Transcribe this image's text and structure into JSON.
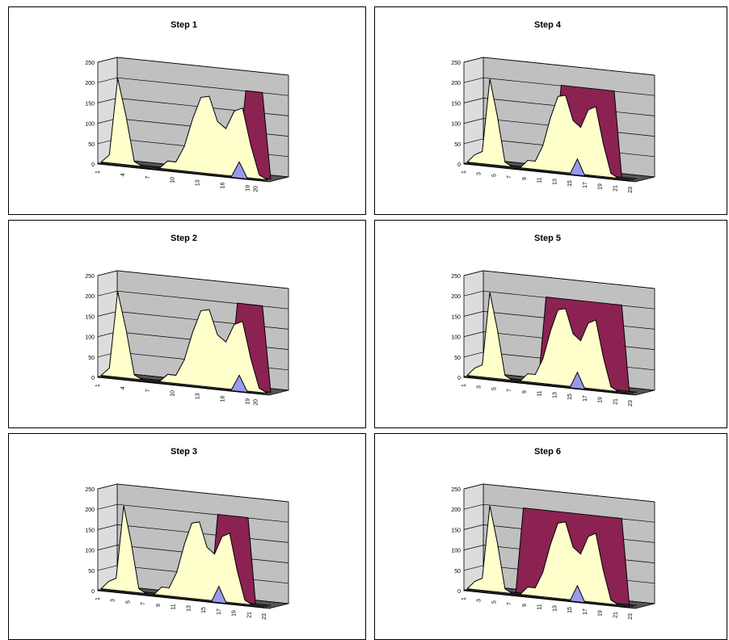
{
  "colors": {
    "series_main": "#8b2252",
    "series_window": "#ffffcc",
    "series_marker": "#9999ee",
    "wall": "#c0c0c0",
    "floor": "#000000"
  },
  "chart_data": [
    {
      "type": "area",
      "title": "Step 1",
      "x": [
        "1",
        "2",
        "3",
        "4",
        "5",
        "6",
        "7",
        "8",
        "9",
        "10",
        "11",
        "12",
        "13",
        "14",
        "15",
        "16",
        "17",
        "18",
        "19",
        "20",
        "21"
      ],
      "x_tick_labels": [
        "1",
        "4",
        "7",
        "10",
        "13",
        "16",
        "19",
        "20"
      ],
      "y_ticks": [
        "0",
        "50",
        "100",
        "150",
        "200",
        "250"
      ],
      "ylim": [
        0,
        250
      ],
      "series": [
        {
          "values": [
            0,
            20,
            210,
            120,
            10,
            0,
            0,
            0,
            20,
            20,
            60,
            130,
            185,
            190,
            130,
            115,
            160,
            170,
            80,
            10,
            0
          ]
        },
        {
          "values": [
            0,
            0,
            0,
            0,
            0,
            0,
            0,
            0,
            0,
            0,
            0,
            0,
            0,
            0,
            0,
            0,
            0,
            210,
            210,
            210,
            0
          ]
        },
        {
          "values": [
            0,
            0,
            0,
            0,
            0,
            0,
            0,
            0,
            0,
            0,
            0,
            0,
            0,
            0,
            0,
            0,
            0,
            40,
            0,
            0,
            0
          ]
        }
      ]
    },
    {
      "type": "area",
      "title": "Step 4",
      "x": [
        "1",
        "2",
        "3",
        "4",
        "5",
        "6",
        "7",
        "8",
        "9",
        "10",
        "11",
        "12",
        "13",
        "14",
        "15",
        "16",
        "17",
        "18",
        "19",
        "20",
        "21",
        "22",
        "23"
      ],
      "x_tick_labels": [
        "1",
        "3",
        "5",
        "7",
        "9",
        "11",
        "13",
        "15",
        "17",
        "19",
        "21",
        "23"
      ],
      "y_ticks": [
        "0",
        "50",
        "100",
        "150",
        "200",
        "250"
      ],
      "ylim": [
        0,
        250
      ],
      "series": [
        {
          "values": [
            0,
            20,
            30,
            210,
            120,
            10,
            0,
            0,
            20,
            20,
            60,
            130,
            185,
            190,
            130,
            115,
            160,
            170,
            80,
            10,
            0,
            0,
            0
          ]
        },
        {
          "values": [
            0,
            0,
            0,
            0,
            0,
            0,
            0,
            0,
            0,
            0,
            0,
            0,
            210,
            210,
            210,
            210,
            210,
            210,
            210,
            210,
            0,
            0,
            0
          ]
        },
        {
          "values": [
            0,
            0,
            0,
            0,
            0,
            0,
            0,
            0,
            0,
            0,
            0,
            0,
            0,
            0,
            0,
            40,
            0,
            0,
            0,
            0,
            0,
            0,
            0
          ]
        }
      ]
    },
    {
      "type": "area",
      "title": "Step 2",
      "x": [
        "1",
        "2",
        "3",
        "4",
        "5",
        "6",
        "7",
        "8",
        "9",
        "10",
        "11",
        "12",
        "13",
        "14",
        "15",
        "16",
        "17",
        "18",
        "19",
        "20",
        "21"
      ],
      "x_tick_labels": [
        "1",
        "4",
        "7",
        "10",
        "13",
        "16",
        "19",
        "20"
      ],
      "y_ticks": [
        "0",
        "50",
        "100",
        "150",
        "200",
        "250"
      ],
      "ylim": [
        0,
        250
      ],
      "series": [
        {
          "values": [
            0,
            20,
            210,
            120,
            10,
            0,
            0,
            0,
            20,
            20,
            60,
            130,
            185,
            190,
            130,
            115,
            160,
            170,
            80,
            10,
            0
          ]
        },
        {
          "values": [
            0,
            0,
            0,
            0,
            0,
            0,
            0,
            0,
            0,
            0,
            0,
            0,
            0,
            0,
            0,
            0,
            210,
            210,
            210,
            210,
            0
          ]
        },
        {
          "values": [
            0,
            0,
            0,
            0,
            0,
            0,
            0,
            0,
            0,
            0,
            0,
            0,
            0,
            0,
            0,
            0,
            0,
            40,
            0,
            0,
            0
          ]
        }
      ]
    },
    {
      "type": "area",
      "title": "Step 5",
      "x": [
        "1",
        "2",
        "3",
        "4",
        "5",
        "6",
        "7",
        "8",
        "9",
        "10",
        "11",
        "12",
        "13",
        "14",
        "15",
        "16",
        "17",
        "18",
        "19",
        "20",
        "21",
        "22",
        "23"
      ],
      "x_tick_labels": [
        "1",
        "3",
        "5",
        "7",
        "9",
        "11",
        "13",
        "15",
        "17",
        "19",
        "21",
        "23"
      ],
      "y_ticks": [
        "0",
        "50",
        "100",
        "150",
        "200",
        "250"
      ],
      "ylim": [
        0,
        250
      ],
      "series": [
        {
          "values": [
            0,
            20,
            30,
            210,
            120,
            10,
            0,
            0,
            20,
            20,
            60,
            130,
            185,
            190,
            130,
            115,
            160,
            170,
            80,
            10,
            0,
            0,
            0
          ]
        },
        {
          "values": [
            0,
            0,
            0,
            0,
            0,
            0,
            0,
            0,
            0,
            0,
            210,
            210,
            210,
            210,
            210,
            210,
            210,
            210,
            210,
            210,
            210,
            0,
            0
          ]
        },
        {
          "values": [
            0,
            0,
            0,
            0,
            0,
            0,
            0,
            0,
            0,
            0,
            0,
            0,
            0,
            0,
            0,
            40,
            0,
            0,
            0,
            0,
            0,
            0,
            0
          ]
        }
      ]
    },
    {
      "type": "area",
      "title": "Step 3",
      "x": [
        "1",
        "2",
        "3",
        "4",
        "5",
        "6",
        "7",
        "8",
        "9",
        "10",
        "11",
        "12",
        "13",
        "14",
        "15",
        "16",
        "17",
        "18",
        "19",
        "20",
        "21",
        "22",
        "23"
      ],
      "x_tick_labels": [
        "1",
        "3",
        "5",
        "7",
        "9",
        "11",
        "13",
        "15",
        "17",
        "19",
        "21",
        "23"
      ],
      "y_ticks": [
        "0",
        "50",
        "100",
        "150",
        "200",
        "250"
      ],
      "ylim": [
        0,
        250
      ],
      "series": [
        {
          "values": [
            0,
            20,
            30,
            210,
            120,
            10,
            0,
            0,
            20,
            20,
            60,
            130,
            185,
            190,
            130,
            115,
            160,
            170,
            80,
            10,
            0,
            0,
            0
          ]
        },
        {
          "values": [
            0,
            0,
            0,
            0,
            0,
            0,
            0,
            0,
            0,
            0,
            0,
            0,
            0,
            0,
            0,
            210,
            210,
            210,
            210,
            210,
            0,
            0,
            0
          ]
        },
        {
          "values": [
            0,
            0,
            0,
            0,
            0,
            0,
            0,
            0,
            0,
            0,
            0,
            0,
            0,
            0,
            0,
            0,
            40,
            0,
            0,
            0,
            0,
            0,
            0
          ]
        }
      ]
    },
    {
      "type": "area",
      "title": "Step 6",
      "x": [
        "1",
        "2",
        "3",
        "4",
        "5",
        "6",
        "7",
        "8",
        "9",
        "10",
        "11",
        "12",
        "13",
        "14",
        "15",
        "16",
        "17",
        "18",
        "19",
        "20",
        "21",
        "22",
        "23"
      ],
      "x_tick_labels": [
        "1",
        "3",
        "5",
        "7",
        "9",
        "11",
        "13",
        "15",
        "17",
        "19",
        "21",
        "23"
      ],
      "y_ticks": [
        "0",
        "50",
        "100",
        "150",
        "200",
        "250"
      ],
      "ylim": [
        0,
        250
      ],
      "series": [
        {
          "values": [
            0,
            20,
            30,
            210,
            120,
            10,
            0,
            0,
            20,
            20,
            60,
            130,
            185,
            190,
            130,
            115,
            160,
            170,
            80,
            10,
            0,
            0,
            0
          ]
        },
        {
          "values": [
            0,
            0,
            0,
            0,
            0,
            0,
            0,
            210,
            210,
            210,
            210,
            210,
            210,
            210,
            210,
            210,
            210,
            210,
            210,
            210,
            210,
            0,
            0
          ]
        },
        {
          "values": [
            0,
            0,
            0,
            0,
            0,
            0,
            0,
            0,
            0,
            0,
            0,
            0,
            0,
            0,
            0,
            40,
            0,
            0,
            0,
            0,
            0,
            0,
            0
          ]
        }
      ]
    }
  ]
}
